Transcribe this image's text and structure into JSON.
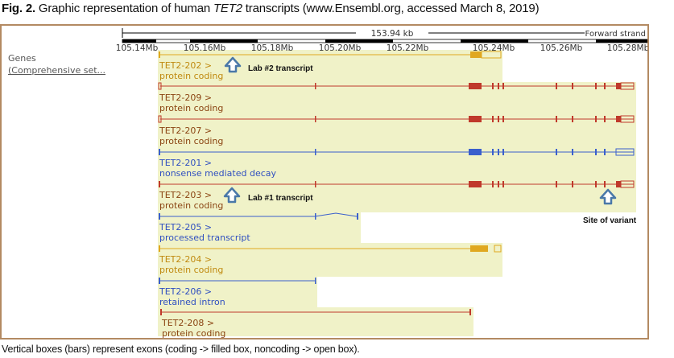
{
  "caption": {
    "fig_label": "Fig. 2.",
    "text_before": " Graphic representation of human ",
    "gene_italic": "TET2",
    "text_after": " transcripts (www.Ensembl.org, accessed March 8, 2019)"
  },
  "footnote": "Vertical boxes (bars) represent exons (coding -> filled box, noncoding -> open box).",
  "ruler": {
    "span_label": "153.94 kb",
    "strand_label": "Forward strand",
    "ticks": [
      "105.14Mb",
      "105.16Mb",
      "105.18Mb",
      "105.20Mb",
      "105.22Mb",
      "105.24Mb",
      "105.26Mb",
      "105.28Mb"
    ]
  },
  "genes_label": {
    "line1": "Genes",
    "line2": "(Comprehensive set..."
  },
  "colors": {
    "protein_coding": "#c0392b",
    "coding_yellow": "#e0a820",
    "nonsense": "#3a5fcd",
    "highlight": "#f0f2c8",
    "arrow": "#4a78a8",
    "label_red": "#8b4513",
    "label_yellow": "#c08a10",
    "label_blue": "#3050c0"
  },
  "transcripts": [
    {
      "name": "TET2-202 >",
      "biotype": "protein coding",
      "style": "yellow"
    },
    {
      "name": "TET2-209 >",
      "biotype": "protein coding",
      "style": "red"
    },
    {
      "name": "TET2-207 >",
      "biotype": "protein coding",
      "style": "red"
    },
    {
      "name": "TET2-201 >",
      "biotype": "nonsense mediated decay",
      "style": "blue"
    },
    {
      "name": "TET2-203 >",
      "biotype": "protein coding",
      "style": "red"
    },
    {
      "name": "TET2-205 >",
      "biotype": "processed transcript",
      "style": "blue"
    },
    {
      "name": "TET2-204 >",
      "biotype": "protein coding",
      "style": "yellow"
    },
    {
      "name": "TET2-206 >",
      "biotype": "retained intron",
      "style": "blue"
    },
    {
      "name": "TET2-208 >",
      "biotype": "protein coding",
      "style": "red"
    }
  ],
  "annotations": {
    "lab2": "Lab #2 transcript",
    "lab1": "Lab #1 transcript",
    "variant": "Site of variant"
  }
}
